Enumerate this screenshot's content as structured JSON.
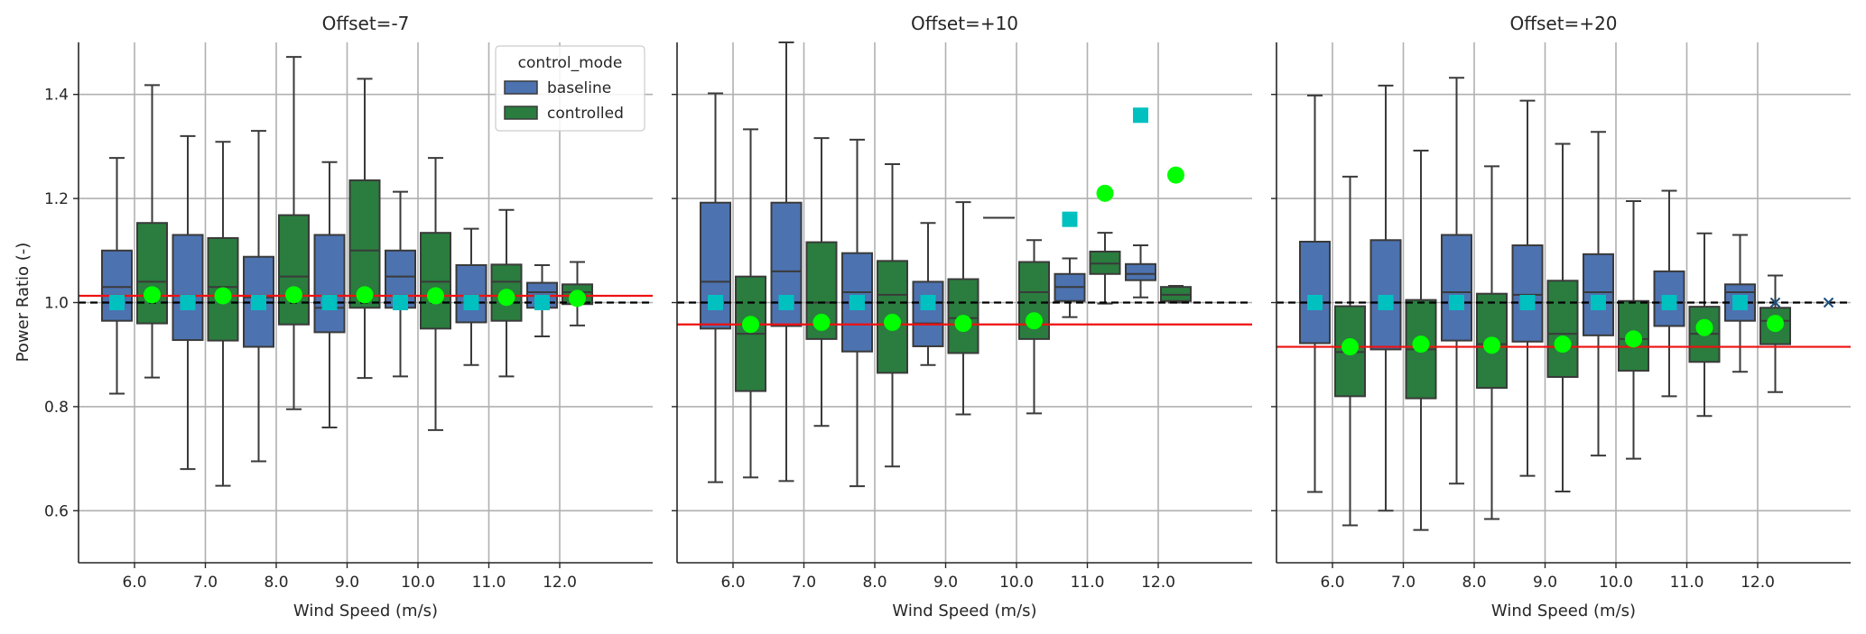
{
  "chart_data": {
    "type": "box",
    "ylabel": "Power Ratio (-)",
    "xlabel": "Wind Speed (m/s)",
    "ylim": [
      0.5,
      1.5
    ],
    "yticks": [
      0.6,
      0.8,
      1.0,
      1.2,
      1.4
    ],
    "ytick_labels": [
      "0.6",
      "0.8",
      "1.0",
      "1.2",
      "1.4"
    ],
    "grid": true,
    "legend": {
      "title": "control_mode",
      "placement": "top-right of first panel",
      "entries": [
        {
          "label": "baseline",
          "color": "#4c72b0"
        },
        {
          "label": "controlled",
          "color": "#2a7d3e"
        }
      ]
    },
    "colors": {
      "baseline": "#4c72b0",
      "controlled": "#2a7d3e",
      "baseline_mean_marker": "#00c0c0",
      "controlled_mean_marker": "#00ff00",
      "ratio_line": "#ee1111",
      "reference_line": "#000000",
      "outlier": "#1f4e79"
    },
    "reference_value": 1.0,
    "panels": [
      {
        "title": "Offset=-7",
        "categories": [
          "6.0",
          "7.0",
          "8.0",
          "9.0",
          "10.0",
          "11.0",
          "12.0"
        ],
        "ratio_line": 1.013,
        "baseline": [
          {
            "q1": 0.965,
            "med": 1.03,
            "q3": 1.1,
            "wlo": 0.825,
            "whi": 1.278,
            "mean": 1.0
          },
          {
            "q1": 0.928,
            "med": 1.0,
            "q3": 1.13,
            "wlo": 0.68,
            "whi": 1.32,
            "mean": 1.0
          },
          {
            "q1": 0.915,
            "med": 1.01,
            "q3": 1.088,
            "wlo": 0.695,
            "whi": 1.33,
            "mean": 1.0
          },
          {
            "q1": 0.943,
            "med": 0.99,
            "q3": 1.13,
            "wlo": 0.76,
            "whi": 1.27,
            "mean": 1.0
          },
          {
            "q1": 0.99,
            "med": 1.05,
            "q3": 1.1,
            "wlo": 0.858,
            "whi": 1.213,
            "mean": 1.0
          },
          {
            "q1": 0.962,
            "med": 1.0,
            "q3": 1.072,
            "wlo": 0.88,
            "whi": 1.142,
            "mean": 1.0
          },
          {
            "q1": 0.99,
            "med": 1.02,
            "q3": 1.038,
            "wlo": 0.935,
            "whi": 1.072,
            "mean": 1.0
          }
        ],
        "controlled": [
          {
            "q1": 0.96,
            "med": 1.04,
            "q3": 1.153,
            "wlo": 0.856,
            "whi": 1.418,
            "mean": 1.015
          },
          {
            "q1": 0.927,
            "med": 1.03,
            "q3": 1.124,
            "wlo": 0.648,
            "whi": 1.309,
            "mean": 1.013
          },
          {
            "q1": 0.958,
            "med": 1.05,
            "q3": 1.168,
            "wlo": 0.795,
            "whi": 1.472,
            "mean": 1.015
          },
          {
            "q1": 0.99,
            "med": 1.1,
            "q3": 1.235,
            "wlo": 0.855,
            "whi": 1.43,
            "mean": 1.015
          },
          {
            "q1": 0.95,
            "med": 1.04,
            "q3": 1.134,
            "wlo": 0.755,
            "whi": 1.278,
            "mean": 1.013
          },
          {
            "q1": 0.965,
            "med": 1.04,
            "q3": 1.073,
            "wlo": 0.858,
            "whi": 1.178,
            "mean": 1.01
          },
          {
            "q1": 0.997,
            "med": 1.02,
            "q3": 1.035,
            "wlo": 0.956,
            "whi": 1.078,
            "mean": 1.008
          }
        ]
      },
      {
        "title": "Offset=+10",
        "categories": [
          "6.0",
          "7.0",
          "8.0",
          "9.0",
          "10.0",
          "11.0",
          "12.0"
        ],
        "ratio_line": 0.958,
        "baseline": [
          {
            "q1": 0.95,
            "med": 1.04,
            "q3": 1.192,
            "wlo": 0.655,
            "whi": 1.402,
            "mean": 1.0
          },
          {
            "q1": 0.955,
            "med": 1.06,
            "q3": 1.192,
            "wlo": 0.657,
            "whi": 1.5,
            "mean": 1.0
          },
          {
            "q1": 0.906,
            "med": 1.02,
            "q3": 1.095,
            "wlo": 0.647,
            "whi": 1.313,
            "mean": 1.0
          },
          {
            "q1": 0.916,
            "med": 0.96,
            "q3": 1.04,
            "wlo": 0.88,
            "whi": 1.153,
            "mean": 1.0
          },
          {
            "q1": 1.163,
            "med": 1.163,
            "q3": 1.163,
            "wlo": 1.163,
            "whi": 1.163,
            "mean": null
          },
          {
            "q1": 1.003,
            "med": 1.03,
            "q3": 1.055,
            "wlo": 0.972,
            "whi": 1.085,
            "mean": 1.16
          },
          {
            "q1": 1.043,
            "med": 1.055,
            "q3": 1.074,
            "wlo": 1.01,
            "whi": 1.11,
            "mean": 1.36
          }
        ],
        "controlled": [
          {
            "q1": 0.83,
            "med": 0.94,
            "q3": 1.05,
            "wlo": 0.664,
            "whi": 1.333,
            "mean": 0.958
          },
          {
            "q1": 0.93,
            "med": 1.0,
            "q3": 1.116,
            "wlo": 0.763,
            "whi": 1.316,
            "mean": 0.962
          },
          {
            "q1": 0.865,
            "med": 1.015,
            "q3": 1.08,
            "wlo": 0.685,
            "whi": 1.266,
            "mean": 0.962
          },
          {
            "q1": 0.903,
            "med": 0.97,
            "q3": 1.045,
            "wlo": 0.785,
            "whi": 1.193,
            "mean": 0.96
          },
          {
            "q1": 0.93,
            "med": 1.02,
            "q3": 1.078,
            "wlo": 0.787,
            "whi": 1.12,
            "mean": 0.965
          },
          {
            "q1": 1.055,
            "med": 1.075,
            "q3": 1.098,
            "wlo": 0.998,
            "whi": 1.134,
            "mean": 1.21
          },
          {
            "q1": 1.003,
            "med": 1.015,
            "q3": 1.03,
            "wlo": 1.0,
            "whi": 1.032,
            "mean": 1.245
          }
        ]
      },
      {
        "title": "Offset=+20",
        "categories": [
          "6.0",
          "7.0",
          "8.0",
          "9.0",
          "10.0",
          "11.0",
          "12.0"
        ],
        "ratio_line": 0.915,
        "baseline": [
          {
            "q1": 0.922,
            "med": 1.0,
            "q3": 1.117,
            "wlo": 0.636,
            "whi": 1.398,
            "mean": 1.0
          },
          {
            "q1": 0.91,
            "med": 1.0,
            "q3": 1.12,
            "wlo": 0.6,
            "whi": 1.417,
            "mean": 1.0
          },
          {
            "q1": 0.927,
            "med": 1.02,
            "q3": 1.13,
            "wlo": 0.652,
            "whi": 1.432,
            "mean": 1.0
          },
          {
            "q1": 0.925,
            "med": 1.015,
            "q3": 1.11,
            "wlo": 0.667,
            "whi": 1.388,
            "mean": 1.0
          },
          {
            "q1": 0.937,
            "med": 1.02,
            "q3": 1.093,
            "wlo": 0.706,
            "whi": 1.328,
            "mean": 1.0
          },
          {
            "q1": 0.955,
            "med": 1.0,
            "q3": 1.06,
            "wlo": 0.82,
            "whi": 1.215,
            "mean": 1.0
          },
          {
            "q1": 0.965,
            "med": 1.02,
            "q3": 1.035,
            "wlo": 0.867,
            "whi": 1.13,
            "mean": 1.0
          }
        ],
        "controlled": [
          {
            "q1": 0.82,
            "med": 0.905,
            "q3": 0.993,
            "wlo": 0.572,
            "whi": 1.242,
            "mean": 0.915
          },
          {
            "q1": 0.816,
            "med": 0.91,
            "q3": 1.005,
            "wlo": 0.563,
            "whi": 1.292,
            "mean": 0.92
          },
          {
            "q1": 0.836,
            "med": 0.92,
            "q3": 1.017,
            "wlo": 0.584,
            "whi": 1.262,
            "mean": 0.918
          },
          {
            "q1": 0.857,
            "med": 0.94,
            "q3": 1.042,
            "wlo": 0.637,
            "whi": 1.305,
            "mean": 0.92
          },
          {
            "q1": 0.869,
            "med": 0.93,
            "q3": 1.003,
            "wlo": 0.7,
            "whi": 1.195,
            "mean": 0.93
          },
          {
            "q1": 0.886,
            "med": 0.94,
            "q3": 0.992,
            "wlo": 0.782,
            "whi": 1.133,
            "mean": 0.952
          },
          {
            "q1": 0.92,
            "med": 0.965,
            "q3": 0.99,
            "wlo": 0.828,
            "whi": 1.052,
            "mean": 0.96
          }
        ],
        "outliers": [
          {
            "category_index": 6,
            "offset": 0.5,
            "value": 1.0
          },
          {
            "category_index": 7,
            "offset": 0.0,
            "value": 1.0
          }
        ]
      }
    ]
  }
}
